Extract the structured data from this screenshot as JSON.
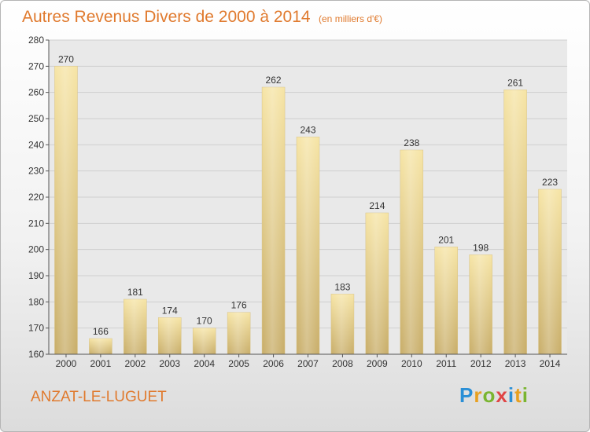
{
  "title": "Autres Revenus Divers de 2000 à 2014",
  "subtitle": "(en milliers d'€)",
  "commune": "ANZAT-LE-LUGUET",
  "logo": {
    "letters": [
      "P",
      "r",
      "o",
      "x",
      "i",
      "t",
      "i"
    ],
    "colors": [
      "#2a8fd6",
      "#e8a020",
      "#7ab530",
      "#e04545",
      "#2a8fd6",
      "#e8a020",
      "#7ab530"
    ]
  },
  "colors": {
    "accent": "#e07a2e",
    "bar_light": "#f5e2a0",
    "bar_dark": "#c9ae68"
  },
  "chart_data": {
    "type": "bar",
    "categories": [
      "2000",
      "2001",
      "2002",
      "2003",
      "2004",
      "2005",
      "2006",
      "2007",
      "2008",
      "2009",
      "2010",
      "2011",
      "2012",
      "2013",
      "2014"
    ],
    "values": [
      270,
      166,
      181,
      174,
      170,
      176,
      262,
      243,
      183,
      214,
      238,
      201,
      198,
      261,
      223
    ],
    "ylim": [
      160,
      280
    ],
    "yticks": [
      160,
      170,
      180,
      190,
      200,
      210,
      220,
      230,
      240,
      250,
      260,
      270,
      280
    ],
    "grid": true
  }
}
